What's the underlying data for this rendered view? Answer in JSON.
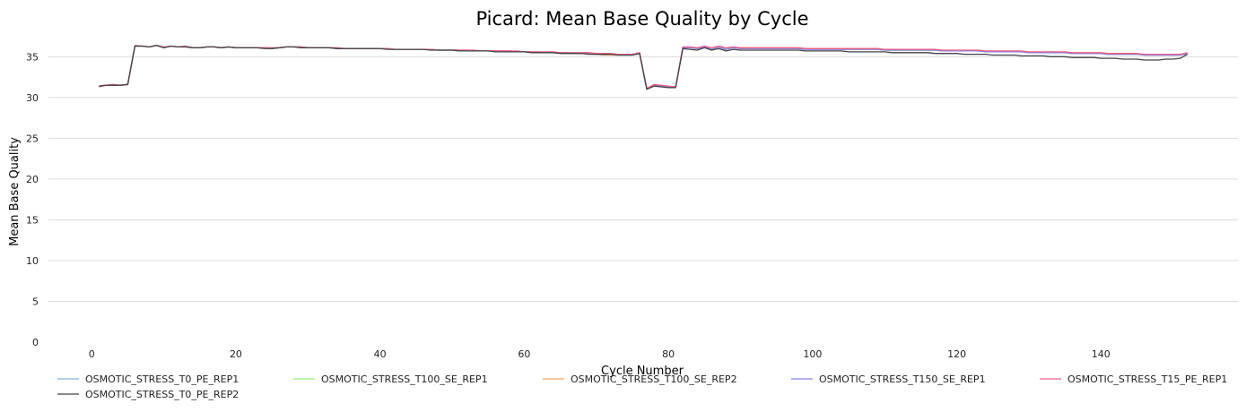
{
  "chart_data": {
    "type": "line",
    "title": "Picard: Mean Base Quality by Cycle",
    "xlabel": "Cycle Number",
    "ylabel": "Mean Base Quality",
    "xlim": [
      -6,
      159
    ],
    "ylim": [
      0,
      38
    ],
    "x_ticks": [
      0,
      20,
      40,
      60,
      80,
      100,
      120,
      140
    ],
    "y_ticks": [
      0,
      5,
      10,
      15,
      20,
      25,
      30,
      35
    ],
    "grid": "horizontal",
    "legend_position": "bottom",
    "x": [
      1,
      2,
      3,
      4,
      5,
      6,
      7,
      8,
      9,
      10,
      11,
      12,
      13,
      14,
      15,
      16,
      17,
      18,
      19,
      20,
      21,
      22,
      23,
      24,
      25,
      26,
      27,
      28,
      29,
      30,
      31,
      32,
      33,
      34,
      35,
      36,
      37,
      38,
      39,
      40,
      41,
      42,
      43,
      44,
      45,
      46,
      47,
      48,
      49,
      50,
      51,
      52,
      53,
      54,
      55,
      56,
      57,
      58,
      59,
      60,
      61,
      62,
      63,
      64,
      65,
      66,
      67,
      68,
      69,
      70,
      71,
      72,
      73,
      74,
      75,
      76,
      77,
      78,
      79,
      80,
      81,
      82,
      83,
      84,
      85,
      86,
      87,
      88,
      89,
      90,
      91,
      92,
      93,
      94,
      95,
      96,
      97,
      98,
      99,
      100,
      101,
      102,
      103,
      104,
      105,
      106,
      107,
      108,
      109,
      110,
      111,
      112,
      113,
      114,
      115,
      116,
      117,
      118,
      119,
      120,
      121,
      122,
      123,
      124,
      125,
      126,
      127,
      128,
      129,
      130,
      131,
      132,
      133,
      134,
      135,
      136,
      137,
      138,
      139,
      140,
      141,
      142,
      143,
      144,
      145,
      146,
      147,
      148,
      149,
      150,
      151,
      152
    ],
    "series": [
      {
        "name": "OSMOTIC_STRESS_T0_PE_REP1",
        "color": "#7cb5ec",
        "values": [
          31.4,
          31.5,
          31.5,
          31.5,
          31.6,
          36.3,
          36.3,
          36.2,
          36.4,
          36.1,
          36.3,
          36.2,
          36.3,
          36.1,
          36.1,
          36.2,
          36.2,
          36.1,
          36.2,
          36.1,
          36.1,
          36.1,
          36.1,
          36.1,
          36.0,
          36.1,
          36.2,
          36.2,
          36.2,
          36.1,
          36.1,
          36.1,
          36.1,
          36.0,
          36.0,
          36.0,
          36.0,
          36.0,
          36.0,
          36.0,
          36.0,
          35.9,
          35.9,
          35.9,
          35.9,
          35.9,
          35.9,
          35.8,
          35.8,
          35.8,
          35.8,
          35.8,
          35.7,
          35.7,
          35.7,
          35.7,
          35.7,
          35.7,
          35.6,
          35.6,
          35.6,
          35.6,
          35.5,
          35.5,
          35.5,
          35.5,
          35.4,
          35.4,
          35.4,
          35.3,
          35.3,
          35.3,
          35.3,
          35.2,
          35.3,
          35.4,
          31.1,
          31.5,
          31.4,
          31.3,
          31.3,
          36.1,
          36.1,
          36.0,
          36.2,
          35.9,
          36.2,
          35.9,
          36.1,
          36.0,
          36.0,
          36.0,
          36.0,
          36.0,
          36.0,
          36.0,
          36.0,
          36.0,
          35.9,
          35.9,
          35.9,
          35.9,
          35.9,
          35.9,
          35.9,
          35.9,
          35.9,
          35.9,
          35.9,
          35.8,
          35.8,
          35.8,
          35.8,
          35.8,
          35.8,
          35.8,
          35.8,
          35.7,
          35.7,
          35.7,
          35.7,
          35.7,
          35.7,
          35.6,
          35.6,
          35.6,
          35.6,
          35.6,
          35.6,
          35.5,
          35.5,
          35.5,
          35.5,
          35.5,
          35.5,
          35.4,
          35.4,
          35.4,
          35.4,
          35.4,
          35.3,
          35.3,
          35.3,
          35.3,
          35.3,
          35.2,
          35.2,
          35.2,
          35.2,
          35.2,
          35.2,
          35.4
        ]
      },
      {
        "name": "OSMOTIC_STRESS_T100_SE_REP1",
        "color": "#90ed7d",
        "values": [
          31.4,
          31.5,
          31.5,
          31.5,
          31.6,
          36.3,
          36.3,
          36.2,
          36.4,
          36.1,
          36.3,
          36.2,
          36.3,
          36.1,
          36.1,
          36.2,
          36.2,
          36.1,
          36.2,
          36.1,
          36.1,
          36.1,
          36.1,
          36.1,
          36.0,
          36.1,
          36.2,
          36.2,
          36.2,
          36.1,
          36.1,
          36.1,
          36.1,
          36.0,
          36.0,
          36.0,
          36.0,
          36.0,
          36.0,
          36.0,
          36.0,
          35.9,
          35.9,
          35.9,
          35.9,
          35.9,
          35.9,
          35.8,
          35.8,
          35.8,
          35.8,
          35.8,
          35.7,
          35.7,
          35.7,
          35.7,
          35.7,
          35.7,
          35.6,
          35.6,
          35.6,
          35.6,
          35.5,
          35.5,
          35.5,
          35.5,
          35.4,
          35.4,
          35.4,
          35.3,
          35.3,
          35.3,
          35.3,
          35.2,
          35.3,
          35.4,
          31.1,
          31.5,
          31.4,
          31.3,
          31.3,
          36.1,
          36.1,
          36.0,
          36.2,
          35.9,
          36.2,
          35.9,
          36.1,
          36.0,
          36.0,
          36.0,
          36.0,
          36.0,
          36.0,
          36.0,
          36.0,
          36.0,
          35.9,
          35.9,
          35.9,
          35.9,
          35.9,
          35.9,
          35.9,
          35.9,
          35.9,
          35.9,
          35.9,
          35.8,
          35.8,
          35.8,
          35.8,
          35.8,
          35.8,
          35.8,
          35.8,
          35.7,
          35.7,
          35.7,
          35.7,
          35.7,
          35.7,
          35.6,
          35.6,
          35.6,
          35.6,
          35.6,
          35.6,
          35.5,
          35.5,
          35.5,
          35.5,
          35.5,
          35.5,
          35.4,
          35.4,
          35.4,
          35.4,
          35.4,
          35.3,
          35.3,
          35.3,
          35.3,
          35.3,
          35.2,
          35.2,
          35.2,
          35.2,
          35.2,
          35.2,
          35.4
        ]
      },
      {
        "name": "OSMOTIC_STRESS_T100_SE_REP2",
        "color": "#f7a35c",
        "values": [
          31.4,
          31.5,
          31.5,
          31.5,
          31.6,
          36.3,
          36.3,
          36.2,
          36.4,
          36.1,
          36.3,
          36.2,
          36.3,
          36.1,
          36.1,
          36.2,
          36.2,
          36.1,
          36.2,
          36.1,
          36.1,
          36.1,
          36.1,
          36.1,
          36.0,
          36.1,
          36.2,
          36.2,
          36.2,
          36.1,
          36.1,
          36.1,
          36.1,
          36.0,
          36.0,
          36.0,
          36.0,
          36.0,
          36.0,
          36.0,
          36.0,
          35.9,
          35.9,
          35.9,
          35.9,
          35.9,
          35.9,
          35.8,
          35.8,
          35.8,
          35.7,
          35.8,
          35.7,
          35.7,
          35.7,
          35.7,
          35.7,
          35.6,
          35.6,
          35.6,
          35.6,
          35.5,
          35.5,
          35.5,
          35.5,
          35.4,
          35.4,
          35.4,
          35.4,
          35.3,
          35.2,
          35.2,
          35.2,
          35.2,
          35.3,
          35.4,
          31.1,
          31.5,
          31.4,
          31.3,
          31.3,
          36.1,
          36.1,
          36.0,
          36.2,
          35.9,
          36.2,
          35.9,
          36.1,
          36.0,
          36.0,
          36.0,
          36.0,
          36.0,
          36.0,
          36.0,
          36.0,
          36.0,
          35.9,
          35.9,
          35.9,
          35.9,
          35.9,
          35.9,
          35.9,
          35.9,
          35.9,
          35.9,
          35.9,
          35.8,
          35.8,
          35.8,
          35.8,
          35.8,
          35.8,
          35.8,
          35.8,
          35.7,
          35.7,
          35.7,
          35.7,
          35.7,
          35.7,
          35.6,
          35.6,
          35.6,
          35.6,
          35.6,
          35.6,
          35.5,
          35.5,
          35.5,
          35.5,
          35.5,
          35.5,
          35.4,
          35.4,
          35.4,
          35.4,
          35.4,
          35.3,
          35.3,
          35.3,
          35.3,
          35.3,
          35.2,
          35.2,
          35.2,
          35.2,
          35.2,
          35.2,
          35.4
        ]
      },
      {
        "name": "OSMOTIC_STRESS_T150_SE_REP1",
        "color": "#8085e9",
        "values": [
          31.4,
          31.5,
          31.5,
          31.5,
          31.6,
          36.3,
          36.3,
          36.2,
          36.4,
          36.1,
          36.3,
          36.2,
          36.3,
          36.1,
          36.1,
          36.2,
          36.2,
          36.1,
          36.2,
          36.1,
          36.1,
          36.1,
          36.1,
          36.1,
          36.0,
          36.1,
          36.2,
          36.2,
          36.2,
          36.1,
          36.1,
          36.1,
          36.1,
          36.0,
          36.0,
          36.0,
          36.0,
          36.0,
          36.0,
          36.0,
          36.0,
          35.9,
          35.9,
          35.9,
          35.9,
          35.9,
          35.9,
          35.8,
          35.8,
          35.8,
          35.8,
          35.8,
          35.7,
          35.7,
          35.7,
          35.7,
          35.7,
          35.7,
          35.6,
          35.6,
          35.6,
          35.6,
          35.5,
          35.5,
          35.5,
          35.5,
          35.4,
          35.4,
          35.4,
          35.3,
          35.3,
          35.3,
          35.3,
          35.2,
          35.3,
          35.4,
          31.1,
          31.5,
          31.4,
          31.3,
          31.3,
          36.1,
          36.1,
          36.0,
          36.2,
          35.9,
          36.2,
          35.9,
          36.1,
          36.0,
          36.0,
          36.0,
          36.0,
          36.0,
          36.0,
          36.0,
          36.0,
          36.0,
          35.9,
          35.9,
          35.9,
          35.9,
          35.9,
          35.9,
          35.9,
          35.9,
          35.9,
          35.9,
          35.9,
          35.8,
          35.8,
          35.8,
          35.8,
          35.8,
          35.8,
          35.8,
          35.8,
          35.7,
          35.7,
          35.7,
          35.7,
          35.7,
          35.7,
          35.6,
          35.6,
          35.6,
          35.6,
          35.6,
          35.6,
          35.5,
          35.5,
          35.5,
          35.5,
          35.5,
          35.5,
          35.4,
          35.4,
          35.4,
          35.4,
          35.4,
          35.3,
          35.3,
          35.3,
          35.3,
          35.3,
          35.2,
          35.2,
          35.2,
          35.2,
          35.2,
          35.2,
          35.4
        ]
      },
      {
        "name": "OSMOTIC_STRESS_T15_PE_REP1",
        "color": "#f15c80",
        "values": [
          31.3,
          31.5,
          31.6,
          31.5,
          31.6,
          36.4,
          36.3,
          36.2,
          36.4,
          36.2,
          36.3,
          36.2,
          36.3,
          36.1,
          36.1,
          36.2,
          36.2,
          36.1,
          36.2,
          36.1,
          36.1,
          36.1,
          36.1,
          36.1,
          36.1,
          36.1,
          36.2,
          36.2,
          36.2,
          36.1,
          36.1,
          36.1,
          36.1,
          36.1,
          36.0,
          36.0,
          36.0,
          36.0,
          36.0,
          36.0,
          36.0,
          35.9,
          35.9,
          35.9,
          35.9,
          35.9,
          35.9,
          35.8,
          35.8,
          35.8,
          35.8,
          35.8,
          35.8,
          35.7,
          35.7,
          35.7,
          35.7,
          35.7,
          35.7,
          35.6,
          35.6,
          35.6,
          35.6,
          35.6,
          35.5,
          35.5,
          35.5,
          35.5,
          35.5,
          35.4,
          35.4,
          35.4,
          35.3,
          35.3,
          35.3,
          35.5,
          31.1,
          31.6,
          31.5,
          31.4,
          31.3,
          36.2,
          36.2,
          36.1,
          36.3,
          36.1,
          36.3,
          36.1,
          36.2,
          36.1,
          36.1,
          36.1,
          36.1,
          36.1,
          36.1,
          36.1,
          36.1,
          36.1,
          36.0,
          36.0,
          36.0,
          36.0,
          36.0,
          36.0,
          36.0,
          36.0,
          36.0,
          36.0,
          36.0,
          35.9,
          35.9,
          35.9,
          35.9,
          35.9,
          35.9,
          35.9,
          35.9,
          35.8,
          35.8,
          35.8,
          35.8,
          35.8,
          35.8,
          35.7,
          35.7,
          35.7,
          35.7,
          35.7,
          35.7,
          35.6,
          35.6,
          35.6,
          35.6,
          35.6,
          35.6,
          35.5,
          35.5,
          35.5,
          35.5,
          35.5,
          35.4,
          35.4,
          35.4,
          35.4,
          35.4,
          35.3,
          35.3,
          35.3,
          35.3,
          35.3,
          35.3,
          35.5
        ]
      },
      {
        "name": "OSMOTIC_STRESS_T0_PE_REP2",
        "color": "#434348",
        "values": [
          31.4,
          31.5,
          31.5,
          31.5,
          31.6,
          36.3,
          36.3,
          36.2,
          36.4,
          36.1,
          36.3,
          36.2,
          36.2,
          36.1,
          36.1,
          36.2,
          36.2,
          36.1,
          36.2,
          36.1,
          36.1,
          36.1,
          36.1,
          36.0,
          36.0,
          36.1,
          36.2,
          36.2,
          36.1,
          36.1,
          36.1,
          36.1,
          36.1,
          36.0,
          36.0,
          36.0,
          36.0,
          36.0,
          36.0,
          36.0,
          35.9,
          35.9,
          35.9,
          35.9,
          35.9,
          35.9,
          35.8,
          35.8,
          35.8,
          35.8,
          35.7,
          35.7,
          35.7,
          35.7,
          35.7,
          35.6,
          35.6,
          35.6,
          35.6,
          35.6,
          35.5,
          35.5,
          35.5,
          35.5,
          35.4,
          35.4,
          35.4,
          35.4,
          35.3,
          35.3,
          35.3,
          35.3,
          35.2,
          35.2,
          35.2,
          35.4,
          31.0,
          31.4,
          31.3,
          31.2,
          31.2,
          36.0,
          35.9,
          35.8,
          36.1,
          35.8,
          36.0,
          35.7,
          35.9,
          35.8,
          35.8,
          35.8,
          35.8,
          35.8,
          35.8,
          35.8,
          35.8,
          35.8,
          35.7,
          35.7,
          35.7,
          35.7,
          35.7,
          35.7,
          35.6,
          35.6,
          35.6,
          35.6,
          35.6,
          35.6,
          35.5,
          35.5,
          35.5,
          35.5,
          35.5,
          35.5,
          35.4,
          35.4,
          35.4,
          35.4,
          35.3,
          35.3,
          35.3,
          35.3,
          35.2,
          35.2,
          35.2,
          35.2,
          35.1,
          35.1,
          35.1,
          35.1,
          35.0,
          35.0,
          35.0,
          34.9,
          34.9,
          34.9,
          34.9,
          34.8,
          34.8,
          34.8,
          34.7,
          34.7,
          34.7,
          34.6,
          34.6,
          34.6,
          34.7,
          34.7,
          34.8,
          35.3
        ]
      }
    ]
  }
}
